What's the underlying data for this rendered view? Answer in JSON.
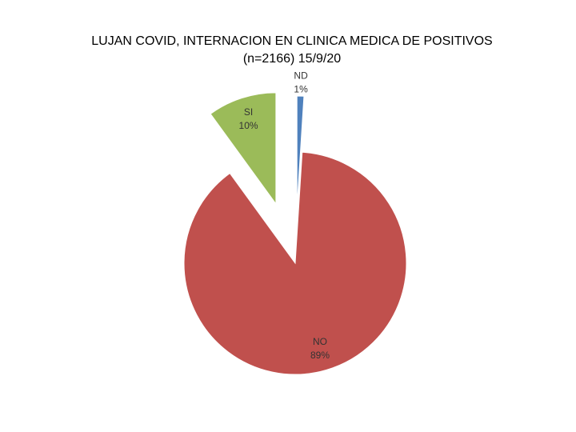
{
  "chart_data": {
    "type": "pie",
    "title": [
      "LUJAN COVID, INTERNACION EN CLINICA MEDICA DE POSITIVOS",
      "(n=2166) 15/9/20"
    ],
    "categories": [
      "ND",
      "NO",
      "SI"
    ],
    "values": [
      1,
      89,
      10
    ],
    "value_labels": [
      "1%",
      "89%",
      "10%"
    ],
    "colors": [
      "#4f81bd",
      "#c0504d",
      "#9bbb59"
    ]
  }
}
